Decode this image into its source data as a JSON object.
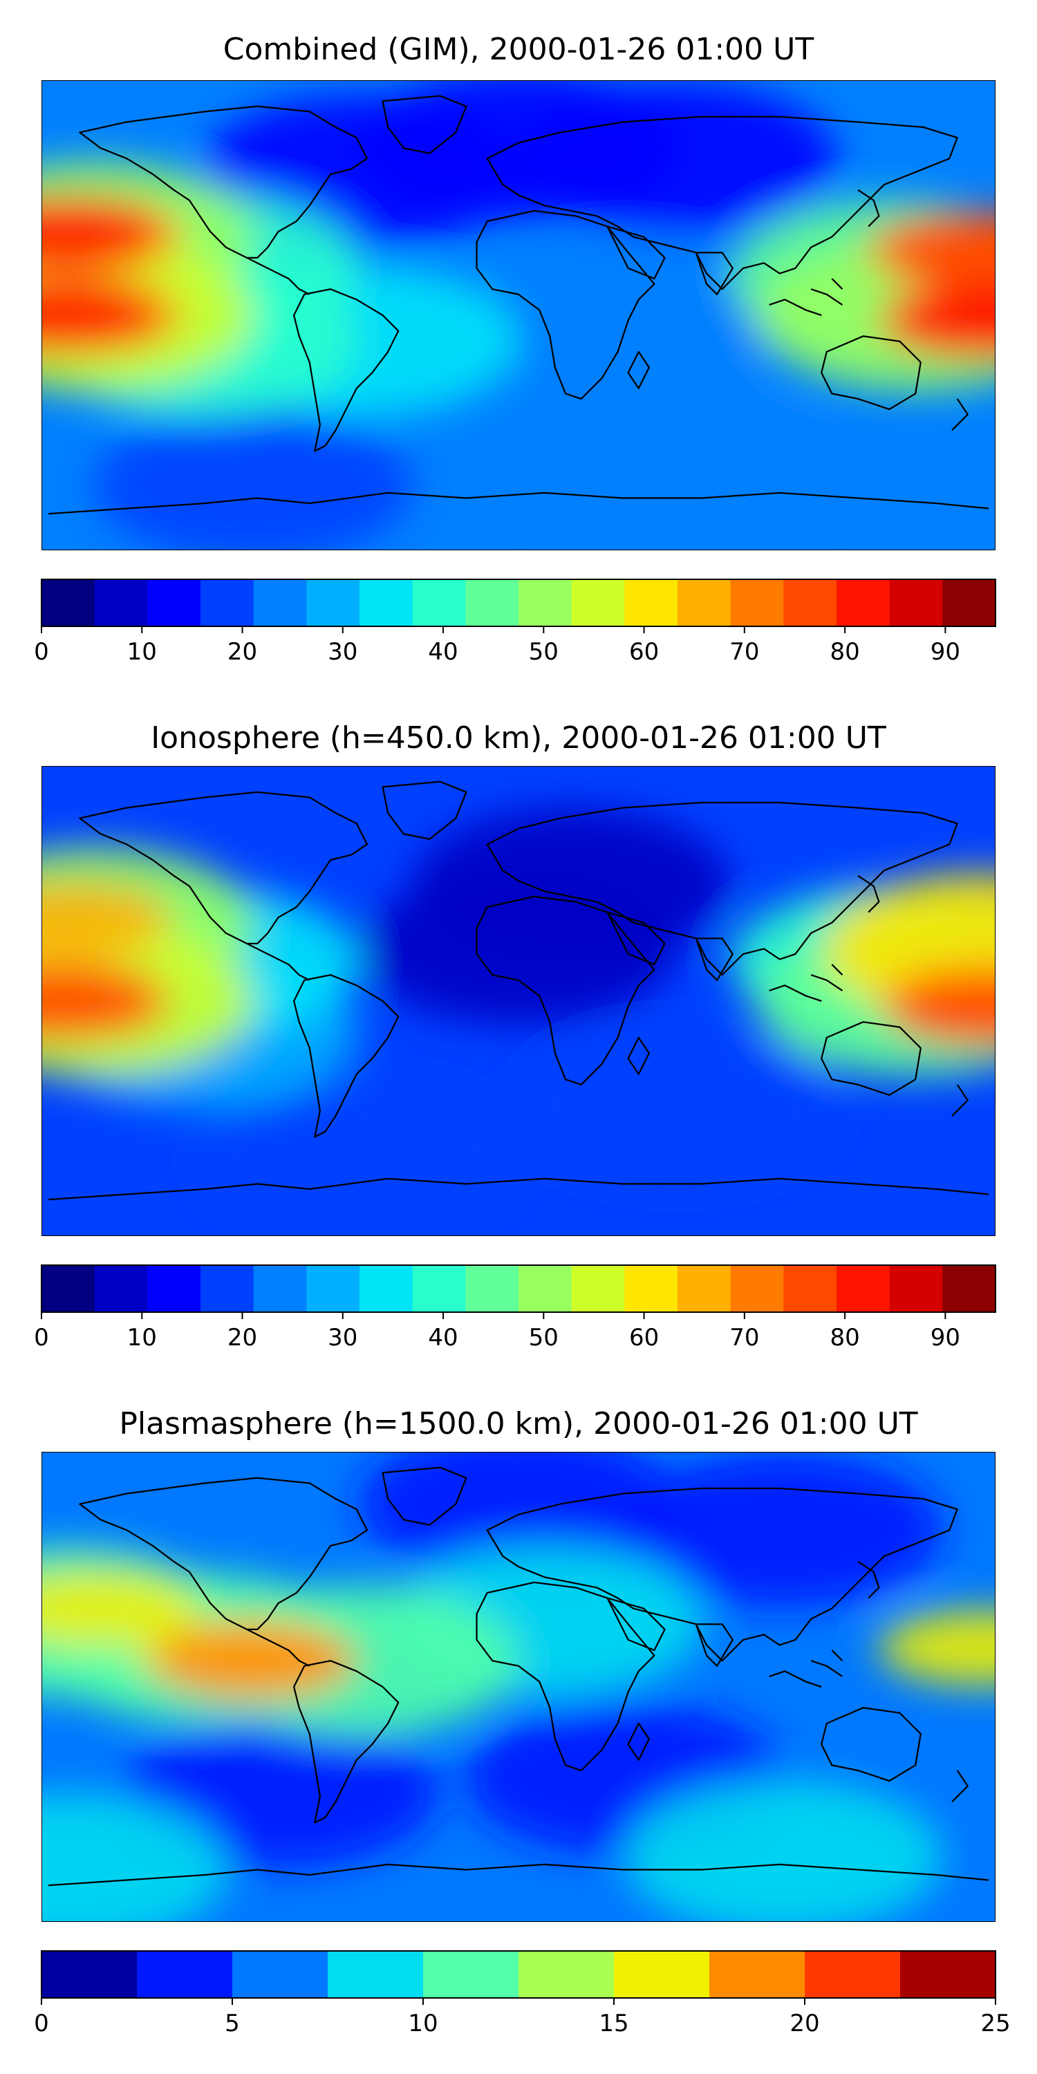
{
  "panels": [
    {
      "title": "Combined (GIM), 2000-01-26 01:00 UT",
      "colorbar": {
        "min": 0,
        "max": 95,
        "step": 5,
        "ticks": [
          "0",
          "10",
          "20",
          "30",
          "40",
          "50",
          "60",
          "70",
          "80",
          "90"
        ],
        "tick_values": [
          0,
          10,
          20,
          30,
          40,
          50,
          60,
          70,
          80,
          90
        ]
      },
      "background_level": 20,
      "blobs": [
        {
          "lon": -160,
          "lat": 30,
          "level": 45
        },
        {
          "lon": -160,
          "lat": 0,
          "level": 50
        },
        {
          "lon": -165,
          "lat": 31,
          "level": 60
        },
        {
          "lon": -165,
          "lat": 0,
          "level": 62
        },
        {
          "lon": -172,
          "lat": 31,
          "level": 78
        },
        {
          "lon": -172,
          "lat": 0,
          "level": 78
        },
        {
          "lon": -120,
          "lat": 18,
          "level": 35
        },
        {
          "lon": -120,
          "lat": -10,
          "level": 35
        },
        {
          "lon": -60,
          "lat": -10,
          "level": 30
        },
        {
          "lon": 40,
          "lat": 0,
          "level": 22
        },
        {
          "lon": 140,
          "lat": 15,
          "level": 40
        },
        {
          "lon": 150,
          "lat": 0,
          "level": 45
        },
        {
          "lon": 170,
          "lat": 25,
          "level": 65
        },
        {
          "lon": 175,
          "lat": -2,
          "level": 72
        },
        {
          "lon": 177,
          "lat": 25,
          "level": 72
        },
        {
          "lon": 178,
          "lat": -2,
          "level": 78
        },
        {
          "lon": 0,
          "lat": 65,
          "level": 10
        },
        {
          "lon": -60,
          "lat": 55,
          "level": 12
        },
        {
          "lon": 60,
          "lat": 60,
          "level": 12
        },
        {
          "lon": -100,
          "lat": -65,
          "level": 18
        },
        {
          "lon": 60,
          "lat": -60,
          "level": 20
        }
      ]
    },
    {
      "title": "Ionosphere  (h=450.0 km), 2000-01-26 01:00 UT",
      "colorbar": {
        "min": 0,
        "max": 95,
        "step": 5,
        "ticks": [
          "0",
          "10",
          "20",
          "30",
          "40",
          "50",
          "60",
          "70",
          "80",
          "90"
        ],
        "tick_values": [
          0,
          10,
          20,
          30,
          40,
          50,
          60,
          70,
          80,
          90
        ]
      },
      "background_level": 15,
      "blobs": [
        {
          "lon": -160,
          "lat": 30,
          "level": 45
        },
        {
          "lon": -160,
          "lat": 0,
          "level": 50
        },
        {
          "lon": -170,
          "lat": 31,
          "level": 60
        },
        {
          "lon": -170,
          "lat": 0,
          "level": 63
        },
        {
          "lon": -173,
          "lat": 0,
          "level": 70
        },
        {
          "lon": -120,
          "lat": 15,
          "level": 30
        },
        {
          "lon": -120,
          "lat": -12,
          "level": 28
        },
        {
          "lon": 20,
          "lat": 45,
          "level": 5
        },
        {
          "lon": 0,
          "lat": 20,
          "level": 6
        },
        {
          "lon": 140,
          "lat": 15,
          "level": 35
        },
        {
          "lon": 150,
          "lat": 0,
          "level": 40
        },
        {
          "lon": 175,
          "lat": 20,
          "level": 55
        },
        {
          "lon": 175,
          "lat": 0,
          "level": 60
        },
        {
          "lon": 178,
          "lat": -3,
          "level": 72
        },
        {
          "lon": 60,
          "lat": -40,
          "level": 15
        },
        {
          "lon": -60,
          "lat": -60,
          "level": 15
        }
      ]
    },
    {
      "title": "Plasmasphere (h=1500.0 km), 2000-01-26 01:00 UT",
      "colorbar": {
        "min": 0,
        "max": 25,
        "step": 2.5,
        "ticks": [
          "0",
          "5",
          "10",
          "15",
          "20",
          "25"
        ],
        "tick_values": [
          0,
          5,
          10,
          15,
          20,
          25
        ]
      },
      "background_level": 6,
      "blobs": [
        {
          "lon": -120,
          "lat": 15,
          "level": 12
        },
        {
          "lon": -105,
          "lat": 12,
          "level": 17
        },
        {
          "lon": -100,
          "lat": 10,
          "level": 19
        },
        {
          "lon": -60,
          "lat": 10,
          "level": 11
        },
        {
          "lon": 10,
          "lat": 25,
          "level": 9
        },
        {
          "lon": 175,
          "lat": 15,
          "level": 15
        },
        {
          "lon": -170,
          "lat": 25,
          "level": 12
        },
        {
          "lon": -160,
          "lat": 30,
          "level": 15
        },
        {
          "lon": 0,
          "lat": 70,
          "level": 3
        },
        {
          "lon": 100,
          "lat": 60,
          "level": 3
        },
        {
          "lon": -90,
          "lat": -40,
          "level": 3
        },
        {
          "lon": 40,
          "lat": -35,
          "level": 3
        },
        {
          "lon": -170,
          "lat": -70,
          "level": 9
        },
        {
          "lon": 100,
          "lat": -65,
          "level": 8
        }
      ]
    }
  ],
  "palette_jet": [
    "#000080",
    "#0000c4",
    "#0000ff",
    "#0040ff",
    "#0080ff",
    "#00b0ff",
    "#00e4f8",
    "#29ffce",
    "#60ff97",
    "#97ff60",
    "#ceff29",
    "#ffe600",
    "#ffb000",
    "#ff7a00",
    "#ff4800",
    "#ff1400",
    "#d40000",
    "#8b0000"
  ],
  "palette_plasma": [
    "#0000a0",
    "#0018ff",
    "#0078ff",
    "#00dcf0",
    "#52ffa8",
    "#a8ff52",
    "#f0f000",
    "#ff8c00",
    "#ff3800",
    "#a80000"
  ],
  "coastline_color": "#000000"
}
